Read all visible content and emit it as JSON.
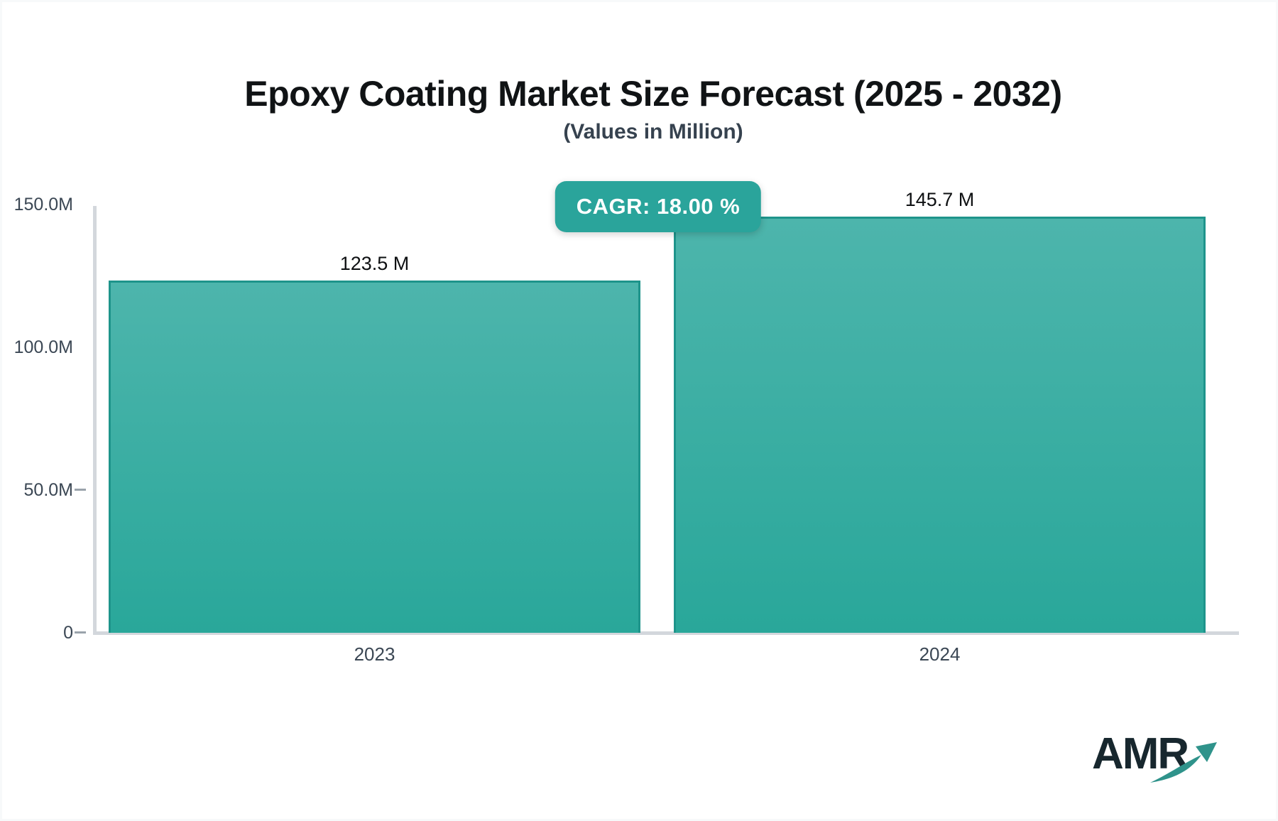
{
  "header": {
    "title": "Epoxy Coating Market Size Forecast (2025 - 2032)",
    "subtitle": "(Values in Million)"
  },
  "chart_data": {
    "type": "bar",
    "title": "Epoxy Coating Market Size Forecast (2025 - 2032)",
    "subtitle": "(Values in Million)",
    "unit": "Million",
    "cagr_label": "CAGR: 18.00 %",
    "categories": [
      "2023",
      "2024"
    ],
    "values": [
      123.5,
      145.7
    ],
    "value_labels": [
      "123.5 M",
      "145.7 M"
    ],
    "ylim": [
      0,
      150
    ],
    "ytick_labels": [
      "150.0M",
      "100.0M",
      "50.0M",
      "0"
    ],
    "ytick_values": [
      150,
      100,
      50,
      0
    ],
    "ytick_dashes": [
      false,
      false,
      true,
      true
    ],
    "grid": false,
    "legend": "none",
    "colors": {
      "bar_top": "#4db5ac",
      "bar_bottom": "#29a79a",
      "bar_border": "#1e948b",
      "axis_line": "#d3d7dc",
      "tick_label_color": "#3b4754",
      "value_label_color": "#0e1012",
      "badge_bg": "#2aa49b",
      "badge_text": "#ffffff"
    }
  },
  "logo": {
    "text": "AMR",
    "color": "#17272e",
    "arrow_color": "#2f938b"
  }
}
